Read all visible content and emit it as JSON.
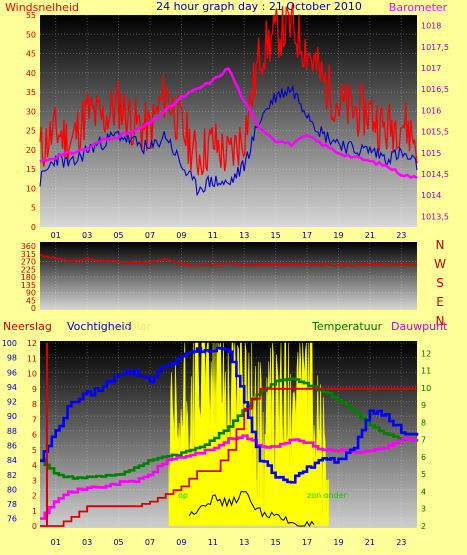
{
  "header": {
    "left_label": "Windsnelheid",
    "title": "24 hour graph day : 21 October 2010",
    "right_label": "Barometer"
  },
  "colors": {
    "background": "#ffff99",
    "wind": "#ff0000",
    "gust": "#0000cc",
    "barometer": "#ff00ff",
    "direction": "#dd0000",
    "rain": "#dd0000",
    "humidity": "#0000ff",
    "solar": "#ffff00",
    "temperature": "#008000",
    "dewpoint": "#ff00ff",
    "uv": "#000000"
  },
  "chart_data": [
    {
      "type": "line",
      "name": "wind-barometer",
      "x_ticks": [
        "01",
        "03",
        "05",
        "07",
        "09",
        "11",
        "13",
        "15",
        "17",
        "19",
        "21",
        "23"
      ],
      "ylabel_left": "Windsnelheid",
      "ylabel_right": "Barometer",
      "ylim_left": [
        0,
        55
      ],
      "yticks_left": [
        0,
        5,
        10,
        15,
        20,
        25,
        30,
        35,
        40,
        45,
        50,
        55
      ],
      "ylim_right": [
        1013.25,
        1018.25
      ],
      "yticks_right": [
        "1013,5",
        "1014",
        "1014,5",
        "1015",
        "1015,5",
        "1016",
        "1016,5",
        "1017",
        "1017,5",
        "1018"
      ],
      "yticks_right_values": [
        1013.5,
        1014,
        1014.5,
        1015,
        1015.5,
        1016,
        1016.5,
        1017,
        1017.5,
        1018
      ],
      "x_hours": [
        0,
        1,
        2,
        3,
        4,
        5,
        6,
        7,
        8,
        9,
        10,
        11,
        12,
        13,
        14,
        15,
        16,
        17,
        18,
        19,
        20,
        21,
        22,
        23,
        24
      ],
      "series": [
        {
          "key": "gust",
          "values": [
            20,
            25,
            22,
            30,
            28,
            32,
            27,
            25,
            35,
            26,
            18,
            22,
            18,
            24,
            45,
            50,
            52,
            46,
            38,
            32,
            30,
            30,
            25,
            28,
            22
          ]
        },
        {
          "key": "wind",
          "values": [
            12,
            18,
            16,
            20,
            22,
            24,
            22,
            20,
            24,
            16,
            10,
            12,
            11,
            16,
            28,
            34,
            36,
            30,
            24,
            22,
            20,
            20,
            18,
            19,
            16
          ]
        },
        {
          "key": "barometer",
          "values": [
            1014.8,
            1014.9,
            1015.0,
            1015.1,
            1015.3,
            1015.4,
            1015.5,
            1015.7,
            1016.0,
            1016.3,
            1016.5,
            1016.7,
            1017.0,
            1016.2,
            1015.6,
            1015.3,
            1015.2,
            1015.4,
            1015.2,
            1015.0,
            1014.9,
            1014.8,
            1014.7,
            1014.5,
            1014.4
          ]
        }
      ]
    },
    {
      "type": "line",
      "name": "wind-direction",
      "ylim": [
        0,
        360
      ],
      "yticks": [
        0,
        45,
        90,
        135,
        180,
        225,
        270,
        315,
        360
      ],
      "compass_labels": [
        "N",
        "W",
        "S",
        "E",
        "N"
      ],
      "x_hours": [
        0,
        1,
        2,
        3,
        4,
        5,
        6,
        7,
        8,
        9,
        10,
        11,
        12,
        13,
        14,
        15,
        16,
        17,
        18,
        19,
        20,
        21,
        22,
        23,
        24
      ],
      "series": [
        {
          "key": "direction",
          "values": [
            305,
            290,
            270,
            285,
            275,
            270,
            265,
            265,
            285,
            255,
            245,
            250,
            260,
            250,
            250,
            250,
            255,
            250,
            250,
            250,
            248,
            250,
            250,
            250,
            250
          ]
        }
      ]
    },
    {
      "type": "line",
      "name": "rain-humidity-temp",
      "x_ticks": [
        "01",
        "03",
        "05",
        "07",
        "09",
        "11",
        "13",
        "15",
        "17",
        "19",
        "21",
        "23"
      ],
      "labels": {
        "rain": "Neerslag",
        "humidity": "Vochtigheid",
        "solar": "Solar",
        "temperature": "Temperatuur",
        "dewpoint": "Dauwpunt",
        "sunrise": "op",
        "sunset": "zon onder"
      },
      "ylim_rain": [
        0,
        12
      ],
      "yticks_rain": [
        0,
        1,
        2,
        3,
        4,
        5,
        6,
        7,
        8,
        9,
        10,
        11,
        12
      ],
      "ylim_humidity": [
        75,
        100
      ],
      "yticks_humidity": [
        76,
        78,
        80,
        82,
        84,
        86,
        88,
        90,
        92,
        94,
        96,
        98,
        100
      ],
      "ylim_temp": [
        2,
        12.6
      ],
      "yticks_temp": [
        2,
        3,
        4,
        5,
        6,
        7,
        8,
        9,
        10,
        11,
        12
      ],
      "x_hours": [
        0,
        1,
        2,
        3,
        4,
        5,
        6,
        7,
        8,
        9,
        10,
        11,
        12,
        13,
        14,
        15,
        16,
        17,
        18,
        19,
        20,
        21,
        22,
        23,
        24
      ],
      "series": [
        {
          "key": "humidity",
          "values": [
            84,
            88,
            92,
            93,
            94,
            96,
            96,
            95,
            97,
            98,
            99,
            99,
            99,
            92,
            84,
            82,
            81,
            83,
            84,
            84,
            86,
            91,
            90,
            88,
            87
          ]
        },
        {
          "key": "temperature",
          "values": [
            5.8,
            5.0,
            4.8,
            4.8,
            4.9,
            5.0,
            5.4,
            5.8,
            6.0,
            6.2,
            6.5,
            7.0,
            7.8,
            8.8,
            9.8,
            10.4,
            10.6,
            10.2,
            9.8,
            9.3,
            8.6,
            7.8,
            7.3,
            7.0,
            7.0
          ]
        },
        {
          "key": "dewpoint",
          "values": [
            2.5,
            3.6,
            4.0,
            4.2,
            4.3,
            4.5,
            4.6,
            5.0,
            5.8,
            6.0,
            6.2,
            6.5,
            7.0,
            7.2,
            6.6,
            6.6,
            7.0,
            6.8,
            6.4,
            6.4,
            6.2,
            6.4,
            6.6,
            7.0,
            7.0
          ]
        },
        {
          "key": "rain",
          "values": [
            0,
            0,
            0.6,
            1.3,
            1.3,
            1.3,
            1.3,
            1.6,
            2.1,
            2.6,
            3.6,
            3.6,
            5.0,
            7.7,
            9.0,
            9.0,
            9.0,
            9.0,
            9.0,
            9.0,
            9.0,
            9.0,
            9.0,
            9.0,
            9.0
          ]
        },
        {
          "key": "solar_pct",
          "values": [
            0,
            0,
            0,
            0,
            0,
            0,
            0,
            0,
            30,
            55,
            80,
            100,
            75,
            95,
            45,
            65,
            80,
            90,
            40,
            0,
            0,
            0,
            0,
            0,
            0
          ]
        },
        {
          "key": "uv",
          "values": [
            0,
            0,
            0,
            0,
            0,
            0,
            0,
            0,
            0,
            0,
            0.1,
            0.15,
            0.12,
            0.18,
            0.08,
            0.05,
            0.02,
            0,
            0,
            0,
            0,
            0,
            0,
            0,
            0
          ]
        }
      ]
    }
  ]
}
